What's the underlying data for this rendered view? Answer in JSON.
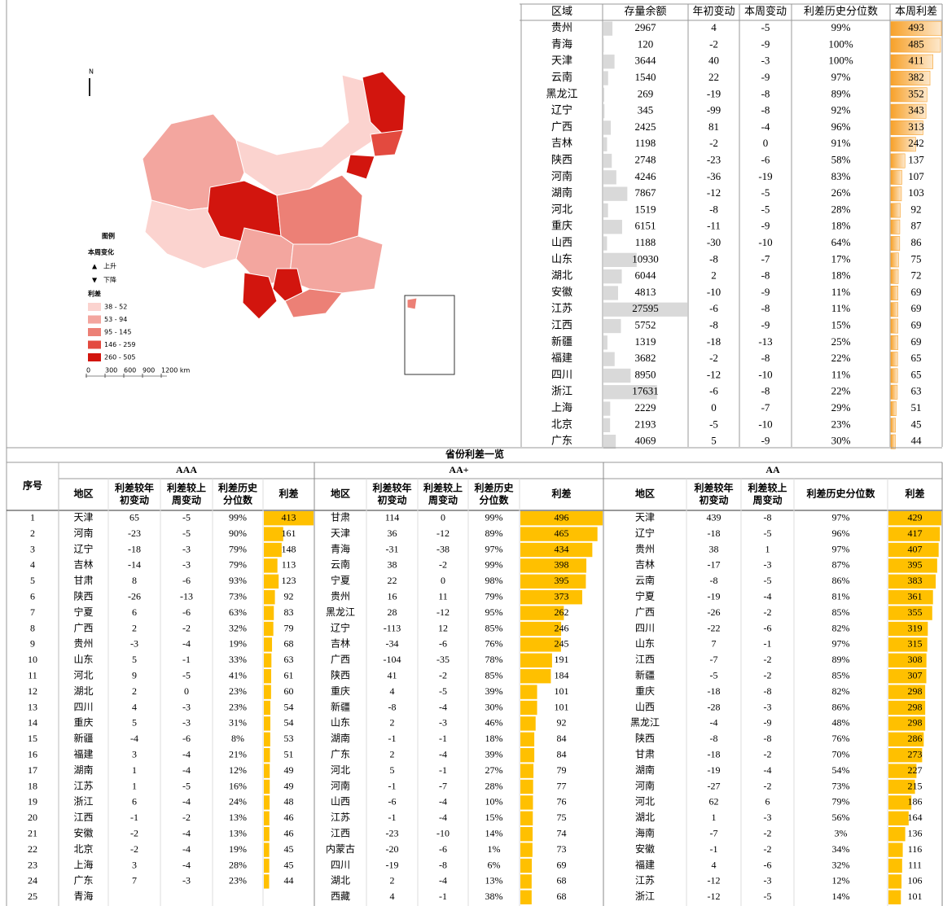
{
  "map": {
    "north": "N",
    "legend_title": "图例",
    "change_title": "本周变化",
    "up": "上升",
    "down": "下降",
    "spread_title": "利差",
    "ranges": [
      {
        "label": "38 - 52",
        "color": "#fbd3cf"
      },
      {
        "label": "53 - 94",
        "color": "#f3a69f"
      },
      {
        "label": "95 - 145",
        "color": "#ec8076"
      },
      {
        "label": "146 - 259",
        "color": "#e34a3f"
      },
      {
        "label": "260 - 505",
        "color": "#d2150e"
      }
    ],
    "scale": [
      "0",
      "300",
      "600",
      "900",
      "1200 km"
    ]
  },
  "top_table": {
    "headers": [
      "区域",
      "存量余额",
      "年初变动",
      "本周变动",
      "利差历史分位数",
      "本周利差"
    ],
    "rows": [
      [
        "贵州",
        2967,
        4,
        -5,
        "99%",
        493
      ],
      [
        "青海",
        120,
        -2,
        -9,
        "100%",
        485
      ],
      [
        "天津",
        3644,
        40,
        -3,
        "100%",
        411
      ],
      [
        "云南",
        1540,
        22,
        -9,
        "97%",
        382
      ],
      [
        "黑龙江",
        269,
        -19,
        -8,
        "89%",
        352
      ],
      [
        "辽宁",
        345,
        -99,
        -8,
        "92%",
        343
      ],
      [
        "广西",
        2425,
        81,
        -4,
        "96%",
        313
      ],
      [
        "吉林",
        1198,
        -2,
        0,
        "91%",
        242
      ],
      [
        "陕西",
        2748,
        -23,
        -6,
        "58%",
        137
      ],
      [
        "河南",
        4246,
        -36,
        -19,
        "83%",
        107
      ],
      [
        "湖南",
        7867,
        -12,
        -5,
        "26%",
        103
      ],
      [
        "河北",
        1519,
        -8,
        -5,
        "28%",
        92
      ],
      [
        "重庆",
        6151,
        -11,
        -9,
        "18%",
        87
      ],
      [
        "山西",
        1188,
        -30,
        -10,
        "64%",
        86
      ],
      [
        "山东",
        10930,
        -8,
        -7,
        "17%",
        75
      ],
      [
        "湖北",
        6044,
        2,
        -8,
        "18%",
        72
      ],
      [
        "安徽",
        4813,
        -10,
        -9,
        "11%",
        69
      ],
      [
        "江苏",
        27595,
        -6,
        -8,
        "11%",
        69
      ],
      [
        "江西",
        5752,
        -8,
        -9,
        "15%",
        69
      ],
      [
        "新疆",
        1319,
        -18,
        -13,
        "25%",
        69
      ],
      [
        "福建",
        3682,
        -2,
        -8,
        "22%",
        65
      ],
      [
        "四川",
        8950,
        -12,
        -10,
        "11%",
        65
      ],
      [
        "浙江",
        17631,
        -6,
        -8,
        "22%",
        63
      ],
      [
        "上海",
        2229,
        0,
        -7,
        "29%",
        51
      ],
      [
        "北京",
        2193,
        -5,
        -10,
        "23%",
        45
      ],
      [
        "广东",
        4069,
        5,
        -9,
        "30%",
        44
      ]
    ]
  },
  "bottom_table": {
    "title": "省份利差一览",
    "index_header": "序号",
    "index": [
      "1",
      "2",
      "3",
      "4",
      "5",
      "6",
      "7",
      "8",
      "9",
      "10",
      "11",
      "12",
      "13",
      "14",
      "15",
      "16",
      "17",
      "18",
      "19",
      "20",
      "21",
      "22",
      "23",
      "24",
      "25"
    ],
    "groups": [
      {
        "name": "AAA",
        "headers": [
          "地区",
          "利差较年初变动",
          "利差较上周变动",
          "利差历史分位数",
          "利差"
        ],
        "rows": [
          [
            "天津",
            65,
            -5,
            "99%",
            413
          ],
          [
            "河南",
            -23,
            -5,
            "90%",
            161
          ],
          [
            "辽宁",
            -18,
            -3,
            "79%",
            148
          ],
          [
            "吉林",
            -14,
            -3,
            "79%",
            113
          ],
          [
            "甘肃",
            8,
            -6,
            "93%",
            123
          ],
          [
            "陕西",
            -26,
            -13,
            "73%",
            92
          ],
          [
            "宁夏",
            6,
            -6,
            "63%",
            83
          ],
          [
            "广西",
            2,
            -2,
            "32%",
            79
          ],
          [
            "贵州",
            -3,
            -4,
            "19%",
            68
          ],
          [
            "山东",
            5,
            -1,
            "33%",
            63
          ],
          [
            "河北",
            9,
            -5,
            "41%",
            61
          ],
          [
            "湖北",
            2,
            0,
            "23%",
            60
          ],
          [
            "四川",
            4,
            -3,
            "23%",
            54
          ],
          [
            "重庆",
            5,
            -3,
            "31%",
            54
          ],
          [
            "新疆",
            -4,
            -6,
            "8%",
            53
          ],
          [
            "福建",
            3,
            -4,
            "21%",
            51
          ],
          [
            "湖南",
            1,
            -4,
            "12%",
            49
          ],
          [
            "江苏",
            1,
            -5,
            "16%",
            49
          ],
          [
            "浙江",
            6,
            -4,
            "24%",
            48
          ],
          [
            "江西",
            -1,
            -2,
            "13%",
            46
          ],
          [
            "安徽",
            -2,
            -4,
            "13%",
            46
          ],
          [
            "北京",
            -2,
            -4,
            "19%",
            45
          ],
          [
            "上海",
            3,
            -4,
            "28%",
            45
          ],
          [
            "广东",
            7,
            -3,
            "23%",
            44
          ],
          [
            "青海",
            null,
            null,
            null,
            null
          ]
        ]
      },
      {
        "name": "AA+",
        "headers": [
          "地区",
          "利差较年初变动",
          "利差较上周变动",
          "利差历史分位数",
          "利差"
        ],
        "rows": [
          [
            "甘肃",
            114,
            0,
            "99%",
            496
          ],
          [
            "天津",
            36,
            -12,
            "89%",
            465
          ],
          [
            "青海",
            -31,
            -38,
            "97%",
            434
          ],
          [
            "云南",
            38,
            -2,
            "99%",
            398
          ],
          [
            "宁夏",
            22,
            0,
            "98%",
            395
          ],
          [
            "贵州",
            16,
            11,
            "79%",
            373
          ],
          [
            "黑龙江",
            28,
            -12,
            "95%",
            262
          ],
          [
            "辽宁",
            -113,
            12,
            "85%",
            246
          ],
          [
            "吉林",
            -34,
            -6,
            "76%",
            245
          ],
          [
            "广西",
            -104,
            -35,
            "78%",
            191
          ],
          [
            "陕西",
            41,
            -2,
            "85%",
            184
          ],
          [
            "重庆",
            4,
            -5,
            "39%",
            101
          ],
          [
            "新疆",
            -8,
            -4,
            "30%",
            101
          ],
          [
            "山东",
            2,
            -3,
            "46%",
            92
          ],
          [
            "湖南",
            -1,
            -1,
            "18%",
            84
          ],
          [
            "广东",
            2,
            -4,
            "39%",
            84
          ],
          [
            "河北",
            5,
            -1,
            "27%",
            79
          ],
          [
            "河南",
            -1,
            -7,
            "28%",
            77
          ],
          [
            "山西",
            -6,
            -4,
            "10%",
            76
          ],
          [
            "江苏",
            -1,
            -4,
            "15%",
            75
          ],
          [
            "江西",
            -23,
            -10,
            "14%",
            74
          ],
          [
            "内蒙古",
            -20,
            -6,
            "1%",
            73
          ],
          [
            "四川",
            -19,
            -8,
            "6%",
            69
          ],
          [
            "湖北",
            2,
            -4,
            "13%",
            68
          ],
          [
            "西藏",
            4,
            -1,
            "38%",
            68
          ]
        ]
      },
      {
        "name": "AA",
        "headers": [
          "地区",
          "利差较年初变动",
          "利差较上周变动",
          "利差历史分位数",
          "利差"
        ],
        "rows": [
          [
            "天津",
            439,
            -8,
            "97%",
            429
          ],
          [
            "辽宁",
            -18,
            -5,
            "96%",
            417
          ],
          [
            "贵州",
            38,
            1,
            "97%",
            407
          ],
          [
            "吉林",
            -17,
            -3,
            "87%",
            395
          ],
          [
            "云南",
            -8,
            -5,
            "86%",
            383
          ],
          [
            "宁夏",
            -19,
            -4,
            "81%",
            361
          ],
          [
            "广西",
            -26,
            -2,
            "85%",
            355
          ],
          [
            "四川",
            -22,
            -6,
            "82%",
            319
          ],
          [
            "山东",
            7,
            -1,
            "97%",
            315
          ],
          [
            "江西",
            -7,
            -2,
            "89%",
            308
          ],
          [
            "新疆",
            -5,
            -2,
            "85%",
            307
          ],
          [
            "重庆",
            -18,
            -8,
            "82%",
            298
          ],
          [
            "山西",
            -28,
            -3,
            "86%",
            298
          ],
          [
            "黑龙江",
            -4,
            -9,
            "48%",
            298
          ],
          [
            "陕西",
            -8,
            -8,
            "76%",
            286
          ],
          [
            "甘肃",
            -18,
            -2,
            "70%",
            273
          ],
          [
            "湖南",
            -19,
            -4,
            "54%",
            227
          ],
          [
            "河南",
            -27,
            -2,
            "73%",
            215
          ],
          [
            "河北",
            62,
            6,
            "79%",
            186
          ],
          [
            "湖北",
            1,
            -3,
            "56%",
            164
          ],
          [
            "海南",
            -7,
            -2,
            "3%",
            136
          ],
          [
            "安徽",
            -1,
            -2,
            "34%",
            116
          ],
          [
            "福建",
            4,
            -6,
            "32%",
            111
          ],
          [
            "江苏",
            -12,
            -3,
            "12%",
            106
          ],
          [
            "浙江",
            -12,
            -5,
            "14%",
            101
          ]
        ]
      }
    ]
  }
}
